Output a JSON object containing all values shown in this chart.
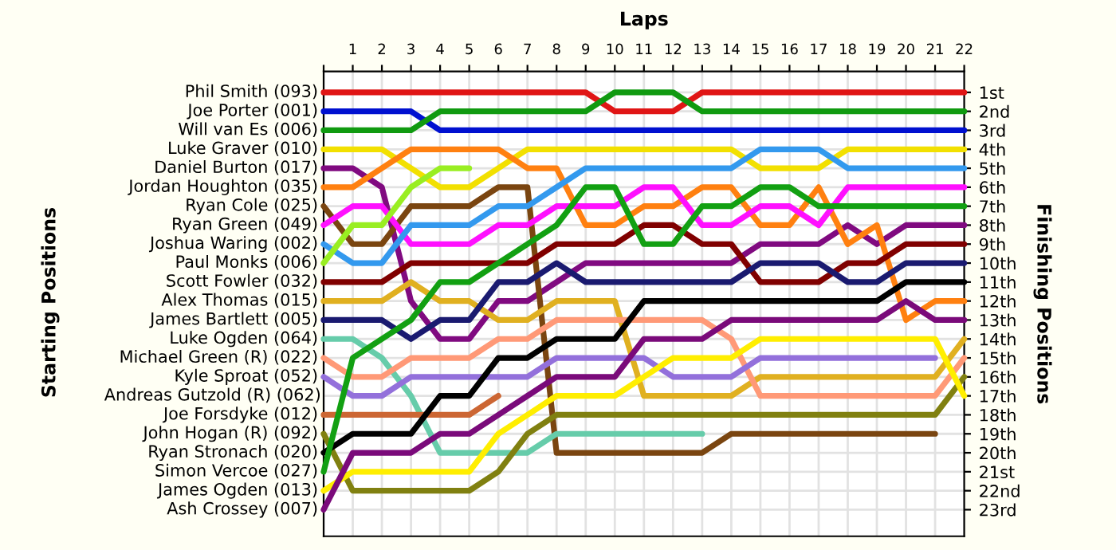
{
  "chart_data": {
    "type": "line",
    "xlabel": "Laps",
    "ylabel": "Finishing Positions",
    "annotations": [
      "Starting Positions",
      "Andreas Gutzold (R) (062)"
    ],
    "x": [
      0,
      1,
      2,
      3,
      4,
      5,
      6,
      7,
      8,
      9,
      10,
      11,
      12,
      13,
      14,
      15,
      16,
      17,
      18,
      19,
      20,
      21,
      22
    ],
    "xlim": [
      0,
      22
    ],
    "xticks": [
      {
        "value": 0,
        "label": null
      },
      1,
      2,
      3,
      4,
      5,
      6,
      7,
      8,
      9,
      10,
      11,
      12,
      13,
      14,
      15,
      16,
      17,
      18,
      19,
      20,
      21,
      22
    ],
    "ylim": [
      24.4,
      -0.1
    ],
    "yticks": [
      {
        "value": 1,
        "label": "1st"
      },
      {
        "value": 2,
        "label": "2nd"
      },
      {
        "value": 3,
        "label": "3rd"
      },
      {
        "value": 4,
        "label": "4th"
      },
      {
        "value": 5,
        "label": "5th"
      },
      {
        "value": 6,
        "label": "6th"
      },
      {
        "value": 7,
        "label": "7th"
      },
      {
        "value": 8,
        "label": "8th"
      },
      {
        "value": 9,
        "label": "9th"
      },
      {
        "value": 10,
        "label": "10th"
      },
      {
        "value": 11,
        "label": "11th"
      },
      {
        "value": 12,
        "label": "12th"
      },
      {
        "value": 13,
        "label": "13th"
      },
      {
        "value": 14,
        "label": "14th"
      },
      {
        "value": 15,
        "label": "15th"
      },
      {
        "value": 16,
        "label": "16th"
      },
      {
        "value": 17,
        "label": "17th"
      },
      {
        "value": 18,
        "label": "18th"
      },
      {
        "value": 19,
        "label": "19th"
      },
      {
        "value": 20,
        "label": "20th"
      },
      {
        "value": 21,
        "label": "21st"
      },
      {
        "value": 22,
        "label": "22nd"
      },
      {
        "value": 23,
        "label": "23rd"
      }
    ],
    "grid": true,
    "legend": false,
    "marker": "none",
    "line_style": "solid",
    "series": [
      {
        "name": "Phil Smith (093)",
        "color": "#e01515",
        "values": [
          1,
          1,
          1,
          1,
          1,
          1,
          1,
          1,
          1,
          1,
          2,
          2,
          2,
          1,
          1,
          1,
          1,
          1,
          1,
          1,
          1,
          1,
          1
        ]
      },
      {
        "name": "Joe Porter (001)",
        "color": "#0010d0",
        "values": [
          2,
          2,
          2,
          2,
          3,
          3,
          3,
          3,
          3,
          3,
          3,
          3,
          3,
          3,
          3,
          3,
          3,
          3,
          3,
          3,
          3,
          3,
          3
        ]
      },
      {
        "name": "Will van Es (006)",
        "color": "#109a10",
        "values": [
          3,
          3,
          3,
          3,
          2,
          2,
          2,
          2,
          2,
          2,
          1,
          1,
          1,
          2,
          2,
          2,
          2,
          2,
          2,
          2,
          2,
          2,
          2
        ]
      },
      {
        "name": "Luke Graver (010)",
        "color": "#f2e000",
        "values": [
          4,
          4,
          4,
          5,
          6,
          6,
          5,
          4,
          4,
          4,
          4,
          4,
          4,
          4,
          4,
          5,
          5,
          5,
          4,
          4,
          4,
          4,
          4
        ]
      },
      {
        "name": "Daniel Burton (017)",
        "color": "#800a80",
        "values": [
          5,
          5,
          6,
          12,
          14,
          14,
          12,
          12,
          11,
          10,
          10,
          10,
          10,
          10,
          10,
          9,
          9,
          9,
          8,
          9,
          8,
          8,
          8
        ]
      },
      {
        "name": "Jordan Houghton (035)",
        "color": "#ff8010",
        "values": [
          6,
          6,
          5,
          4,
          4,
          4,
          4,
          5,
          5,
          8,
          8,
          7,
          7,
          6,
          6,
          8,
          8,
          6,
          9,
          8,
          13,
          12,
          12
        ]
      },
      {
        "name": "Ryan Cole (025)",
        "color": "#7a4510",
        "values": [
          7,
          9,
          9,
          7,
          7,
          7,
          6,
          6,
          20,
          20,
          20,
          20,
          20,
          20,
          19,
          19,
          19,
          19,
          19,
          19,
          19,
          19,
          null
        ]
      },
      {
        "name": "Ryan Green (049)",
        "color": "#ff10ff",
        "values": [
          8,
          7,
          7,
          9,
          9,
          9,
          8,
          8,
          7,
          7,
          7,
          6,
          6,
          8,
          8,
          7,
          7,
          8,
          6,
          6,
          6,
          6,
          6
        ]
      },
      {
        "name": "Joshua Waring (002)",
        "color": "#3399ee",
        "values": [
          9,
          10,
          10,
          8,
          8,
          8,
          7,
          7,
          6,
          5,
          5,
          5,
          5,
          5,
          5,
          4,
          4,
          4,
          5,
          5,
          5,
          5,
          5
        ]
      },
      {
        "name": "Paul Monks (006)",
        "color": "#99ee22",
        "values": [
          10,
          8,
          8,
          6,
          5,
          5,
          null,
          null,
          null,
          null,
          null,
          null,
          null,
          null,
          null,
          null,
          null,
          null,
          null,
          null,
          null,
          null,
          null
        ]
      },
      {
        "name": "Scott Fowler (032)",
        "color": "#800000",
        "values": [
          11,
          11,
          11,
          10,
          10,
          10,
          10,
          10,
          9,
          9,
          9,
          8,
          8,
          9,
          9,
          11,
          11,
          11,
          10,
          10,
          9,
          9,
          9
        ]
      },
      {
        "name": "Alex Thomas (015)",
        "color": "#e0b020",
        "values": [
          12,
          12,
          12,
          11,
          12,
          12,
          13,
          13,
          12,
          12,
          12,
          17,
          17,
          17,
          17,
          16,
          16,
          16,
          16,
          16,
          16,
          16,
          14
        ]
      },
      {
        "name": "James Bartlett (005)",
        "color": "#1a1a70",
        "values": [
          13,
          13,
          13,
          14,
          13,
          13,
          11,
          11,
          10,
          11,
          11,
          11,
          11,
          11,
          11,
          10,
          10,
          10,
          11,
          11,
          10,
          10,
          10
        ]
      },
      {
        "name": "Luke Ogden (064)",
        "color": "#66ccaa",
        "values": [
          14,
          14,
          15,
          17,
          20,
          20,
          20,
          20,
          19,
          19,
          19,
          19,
          19,
          19,
          null,
          null,
          null,
          null,
          null,
          null,
          null,
          null,
          null
        ]
      },
      {
        "name": "Michael Green (R) (022)",
        "color": "#ff9977",
        "values": [
          15,
          16,
          16,
          15,
          15,
          15,
          14,
          14,
          13,
          13,
          13,
          13,
          13,
          13,
          14,
          17,
          17,
          17,
          17,
          17,
          17,
          17,
          15
        ]
      },
      {
        "name": "Kyle Sproat (052)",
        "color": "#9370db",
        "values": [
          16,
          17,
          17,
          16,
          16,
          16,
          16,
          16,
          15,
          15,
          15,
          15,
          16,
          16,
          16,
          15,
          15,
          15,
          15,
          15,
          15,
          15,
          null
        ]
      },
      {
        "name": "Joe Forsdyke (012)",
        "color": "#cc6633",
        "values": [
          18,
          18,
          18,
          18,
          18,
          18,
          17,
          null,
          null,
          null,
          null,
          null,
          null,
          null,
          null,
          null,
          null,
          null,
          null,
          null,
          null,
          null,
          null
        ]
      },
      {
        "name": "John Hogan (R) (092)",
        "color": "#808010",
        "values": [
          19,
          22,
          22,
          22,
          22,
          22,
          21,
          19,
          18,
          18,
          18,
          18,
          18,
          18,
          18,
          18,
          18,
          18,
          18,
          18,
          18,
          18,
          16
        ]
      },
      {
        "name": "Ryan Stronach (020)",
        "color": "#000000",
        "values": [
          20,
          19,
          19,
          19,
          17,
          17,
          15,
          15,
          14,
          14,
          14,
          12,
          12,
          12,
          12,
          12,
          12,
          12,
          12,
          12,
          11,
          11,
          11
        ]
      },
      {
        "name": "Simon Vercoe (027)",
        "color": "#12a012",
        "values": [
          21,
          15,
          14,
          13,
          11,
          11,
          10,
          9,
          8,
          6,
          6,
          9,
          9,
          7,
          7,
          6,
          6,
          7,
          7,
          7,
          7,
          7,
          7
        ]
      },
      {
        "name": "James Ogden (013)",
        "color": "#ffee00",
        "values": [
          22,
          21,
          21,
          21,
          21,
          21,
          19,
          18,
          17,
          17,
          17,
          16,
          15,
          15,
          15,
          14,
          14,
          14,
          14,
          14,
          14,
          14,
          17
        ]
      },
      {
        "name": "Ash Crossey (007)",
        "color": "#7a0a7a",
        "values": [
          23,
          20,
          20,
          20,
          19,
          19,
          18,
          17,
          16,
          16,
          16,
          14,
          14,
          14,
          13,
          13,
          13,
          13,
          13,
          13,
          12,
          13,
          13
        ]
      }
    ]
  }
}
